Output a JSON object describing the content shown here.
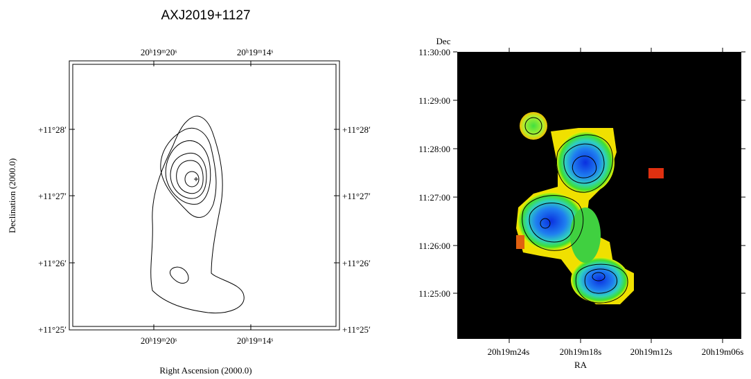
{
  "title": "AXJ2019+1127",
  "left_panel": {
    "top_ticks": [
      "20ʰ19ᵐ20ˢ",
      "20ʰ19ᵐ14ˢ"
    ],
    "bottom_ticks": [
      "20ʰ19ᵐ20ˢ",
      "20ʰ19ᵐ14ˢ"
    ],
    "left_ticks": [
      "+11°28′",
      "+11°27′",
      "+11°26′",
      "+11°25′"
    ],
    "right_ticks": [
      "+11°28′",
      "+11°27′",
      "+11°26′",
      "+11°25′"
    ],
    "x_label": "Right Ascension (2000.0)",
    "y_label": "Declination (2000.0)"
  },
  "right_panel": {
    "y_title": "Dec",
    "y_ticks": [
      "11:30:00",
      "11:29:00",
      "11:28:00",
      "11:27:00",
      "11:26:00",
      "11:25:00"
    ],
    "x_ticks": [
      "20h19m24s",
      "20h19m18s",
      "20h19m12s",
      "20h19m06s"
    ],
    "x_label": "RA"
  }
}
